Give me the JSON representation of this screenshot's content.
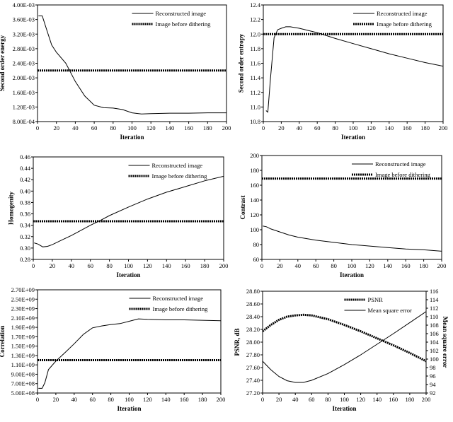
{
  "chart_data": [
    {
      "type": "line",
      "xlabel": "Iteration",
      "ylabel": "Second order energy",
      "xlim": [
        0,
        200
      ],
      "ylim": [
        0.0008,
        0.004
      ],
      "xticks": [
        0,
        20,
        40,
        60,
        80,
        100,
        120,
        140,
        160,
        180,
        200
      ],
      "yticks": [
        0.0008,
        0.0012,
        0.0016,
        0.002,
        0.0024,
        0.0028,
        0.0032,
        0.0036,
        0.004
      ],
      "ytick_labels": [
        "8.00E-04",
        "1.20E-03",
        "1.60E-03",
        "2.00E-03",
        "2.40E-03",
        "2.80E-03",
        "3.20E-03",
        "3.60E-03",
        "4.00E-03"
      ],
      "legend_position": "top-right",
      "grid": false,
      "series": [
        {
          "name": "Reconstructed image",
          "style": "solid",
          "x": [
            1,
            5,
            10,
            15,
            20,
            30,
            40,
            50,
            60,
            70,
            80,
            90,
            100,
            110,
            120,
            140,
            160,
            180,
            200
          ],
          "y": [
            0.0037,
            0.0037,
            0.0033,
            0.0029,
            0.0027,
            0.0024,
            0.0019,
            0.0015,
            0.00125,
            0.00118,
            0.00117,
            0.00113,
            0.00104,
            0.00101,
            0.00102,
            0.00103,
            0.00103,
            0.00104,
            0.00104
          ]
        },
        {
          "name": "Image before dithering",
          "style": "dashed",
          "x": [
            0,
            200
          ],
          "y": [
            0.0022,
            0.0022
          ]
        }
      ]
    },
    {
      "type": "line",
      "xlabel": "Iteration",
      "ylabel": "Second order entropy",
      "xlim": [
        0,
        200
      ],
      "ylim": [
        10.8,
        12.4
      ],
      "xticks": [
        0,
        20,
        40,
        60,
        80,
        100,
        120,
        140,
        160,
        180,
        200
      ],
      "yticks": [
        10.8,
        11.0,
        11.2,
        11.4,
        11.6,
        11.8,
        12.0,
        12.2,
        12.4
      ],
      "ytick_labels": [
        "10.8",
        "11.0",
        "11.2",
        "11.4",
        "11.6",
        "11.8",
        "12.0",
        "12.2",
        "12.4"
      ],
      "legend_position": "top-right",
      "grid": false,
      "series": [
        {
          "name": "Reconstructed image",
          "style": "solid",
          "x": [
            3,
            5,
            8,
            12,
            16,
            20,
            25,
            30,
            40,
            50,
            60,
            80,
            100,
            120,
            140,
            160,
            180,
            200
          ],
          "y": [
            10.95,
            10.93,
            11.4,
            11.95,
            12.06,
            12.08,
            12.1,
            12.1,
            12.08,
            12.05,
            12.02,
            11.94,
            11.87,
            11.8,
            11.73,
            11.67,
            11.61,
            11.56
          ]
        },
        {
          "name": "Image before dithering",
          "style": "dashed",
          "x": [
            0,
            200
          ],
          "y": [
            12.0,
            12.0
          ]
        }
      ]
    },
    {
      "type": "line",
      "xlabel": "Iteration",
      "ylabel": "Homogenity",
      "xlim": [
        0,
        200
      ],
      "ylim": [
        0.28,
        0.46
      ],
      "xticks": [
        0,
        20,
        40,
        60,
        80,
        100,
        120,
        140,
        160,
        180,
        200
      ],
      "yticks": [
        0.28,
        0.3,
        0.32,
        0.34,
        0.36,
        0.38,
        0.4,
        0.42,
        0.44,
        0.46
      ],
      "ytick_labels": [
        "0.28",
        "0.30",
        "0.32",
        "0.34",
        "0.36",
        "0.38",
        "0.40",
        "0.42",
        "0.44",
        "0.46"
      ],
      "legend_position": "top-right",
      "grid": false,
      "series": [
        {
          "name": "Reconstructed image",
          "style": "solid",
          "x": [
            1,
            5,
            10,
            15,
            20,
            30,
            40,
            50,
            60,
            70,
            80,
            100,
            120,
            140,
            160,
            180,
            200
          ],
          "y": [
            0.309,
            0.307,
            0.302,
            0.303,
            0.306,
            0.314,
            0.322,
            0.331,
            0.34,
            0.348,
            0.357,
            0.372,
            0.386,
            0.398,
            0.408,
            0.418,
            0.426
          ]
        },
        {
          "name": "Image before dithering",
          "style": "dashed",
          "x": [
            0,
            200
          ],
          "y": [
            0.347,
            0.347
          ]
        }
      ]
    },
    {
      "type": "line",
      "xlabel": "Iteration",
      "ylabel": "Contrast",
      "xlim": [
        0,
        200
      ],
      "ylim": [
        60,
        200
      ],
      "xticks": [
        0,
        20,
        40,
        60,
        80,
        100,
        120,
        140,
        160,
        180,
        200
      ],
      "yticks": [
        60,
        80,
        100,
        120,
        140,
        160,
        180,
        200
      ],
      "ytick_labels": [
        "60",
        "80",
        "100",
        "120",
        "140",
        "160",
        "180",
        "200"
      ],
      "legend_position": "top-right",
      "grid": false,
      "series": [
        {
          "name": "Reconstructed image",
          "style": "solid",
          "x": [
            1,
            5,
            10,
            20,
            30,
            40,
            50,
            60,
            80,
            100,
            120,
            140,
            160,
            180,
            200
          ],
          "y": [
            105,
            104,
            101,
            97,
            93,
            90,
            88,
            86,
            83,
            80,
            78,
            76,
            74,
            73,
            71
          ]
        },
        {
          "name": "Image before dithering",
          "style": "dashed",
          "x": [
            0,
            200
          ],
          "y": [
            169,
            169
          ]
        }
      ]
    },
    {
      "type": "line",
      "xlabel": "Iteration",
      "ylabel": "Correlation",
      "xlim": [
        0,
        200
      ],
      "ylim": [
        500000000,
        2700000000
      ],
      "xticks": [
        0,
        20,
        40,
        60,
        80,
        100,
        120,
        140,
        160,
        180,
        200
      ],
      "yticks": [
        500000000,
        700000000,
        900000000,
        1100000000,
        1300000000,
        1500000000,
        1700000000,
        1900000000,
        2100000000,
        2300000000,
        2500000000,
        2700000000
      ],
      "ytick_labels": [
        "5.00E+08",
        "7.00E+08",
        "9.00E+08",
        "1.10E+09",
        "1.30E+09",
        "1.50E+09",
        "1.70E+09",
        "1.90E+09",
        "2.10E+09",
        "2.30E+09",
        "2.50E+09",
        "2.70E+09"
      ],
      "legend_position": "top-right",
      "grid": false,
      "series": [
        {
          "name": "Reconstructed image",
          "style": "solid",
          "x": [
            1,
            5,
            8,
            12,
            20,
            30,
            40,
            50,
            60,
            70,
            80,
            90,
            100,
            110,
            120,
            140,
            160,
            180,
            200
          ],
          "y": [
            600000000,
            600000000,
            720000000,
            1000000000,
            1180000000,
            1360000000,
            1550000000,
            1750000000,
            1890000000,
            1930000000,
            1960000000,
            1980000000,
            2030000000,
            2080000000,
            2070000000,
            2060000000,
            2060000000,
            2050000000,
            2040000000
          ]
        },
        {
          "name": "Image before dithering",
          "style": "dashed",
          "x": [
            0,
            200
          ],
          "y": [
            1200000000,
            1200000000
          ]
        }
      ]
    },
    {
      "type": "line",
      "xlabel": "Iteration",
      "ylabel": "PSNR, dB",
      "y2label": "Mean square error",
      "xlim": [
        0,
        200
      ],
      "ylim": [
        27.2,
        28.8
      ],
      "y2lim": [
        92,
        116
      ],
      "xticks": [
        0,
        20,
        40,
        60,
        80,
        100,
        120,
        140,
        160,
        180,
        200
      ],
      "yticks": [
        27.2,
        27.4,
        27.6,
        27.8,
        28.0,
        28.2,
        28.4,
        28.6,
        28.8
      ],
      "ytick_labels": [
        "27.20",
        "27.40",
        "27.60",
        "27.80",
        "28.00",
        "28.20",
        "28.40",
        "28.60",
        "28.80"
      ],
      "y2ticks": [
        92,
        94,
        96,
        98,
        100,
        102,
        104,
        106,
        108,
        110,
        112,
        114,
        116
      ],
      "y2tick_labels": [
        "92",
        "94",
        "96",
        "98",
        "100",
        "102",
        "104",
        "106",
        "108",
        "110",
        "112",
        "114",
        "116"
      ],
      "legend_position": "top-right",
      "grid": false,
      "series": [
        {
          "name": "PSNR",
          "style": "dashed",
          "axis": "left",
          "x": [
            0,
            10,
            20,
            30,
            40,
            50,
            60,
            80,
            100,
            120,
            140,
            160,
            180,
            200
          ],
          "y": [
            28.17,
            28.27,
            28.35,
            28.4,
            28.42,
            28.43,
            28.42,
            28.36,
            28.27,
            28.17,
            28.06,
            27.95,
            27.83,
            27.7
          ]
        },
        {
          "name": "Mean square error",
          "style": "solid",
          "axis": "right",
          "x": [
            0,
            10,
            20,
            30,
            40,
            50,
            60,
            80,
            100,
            120,
            140,
            160,
            180,
            200
          ],
          "y": [
            99.5,
            97.5,
            95.9,
            94.9,
            94.5,
            94.5,
            95.0,
            96.6,
            98.7,
            101.0,
            103.5,
            106.0,
            108.6,
            111.2
          ]
        }
      ]
    }
  ]
}
